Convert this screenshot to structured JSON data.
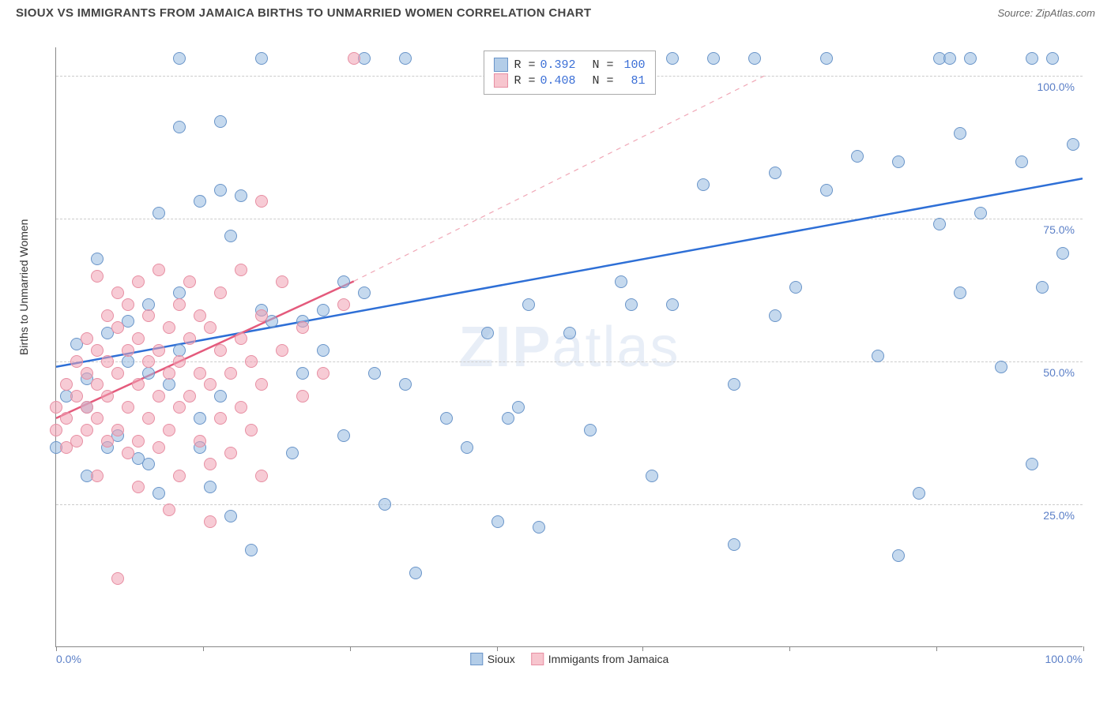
{
  "header": {
    "title": "SIOUX VS IMMIGRANTS FROM JAMAICA BIRTHS TO UNMARRIED WOMEN CORRELATION CHART",
    "source": "Source: ZipAtlas.com"
  },
  "chart": {
    "type": "scatter",
    "y_axis_label": "Births to Unmarried Women",
    "watermark": "ZIPatlas",
    "background_color": "#ffffff",
    "grid_color": "#cccccc",
    "border_color": "#888888",
    "xlim": [
      0,
      100
    ],
    "ylim": [
      0,
      105
    ],
    "x_ticks": [
      0,
      14.3,
      28.6,
      42.9,
      57.1,
      71.4,
      85.7,
      100
    ],
    "x_labels": {
      "0": "0.0%",
      "100": "100.0%"
    },
    "y_gridlines": [
      25,
      50,
      75,
      100
    ],
    "y_labels": {
      "25": "25.0%",
      "50": "50.0%",
      "75": "75.0%",
      "100": "100.0%"
    },
    "legend_top": {
      "rows": [
        {
          "swatch_fill": "#b3cde8",
          "swatch_border": "#6a95c9",
          "r": "0.392",
          "n": "100"
        },
        {
          "swatch_fill": "#f7c5ce",
          "swatch_border": "#e78fa3",
          "r": "0.408",
          "n": "81"
        }
      ],
      "label_r": "R =",
      "label_n": "N ="
    },
    "legend_bottom": [
      {
        "swatch_fill": "#b3cde8",
        "swatch_border": "#6a95c9",
        "label": "Sioux"
      },
      {
        "swatch_fill": "#f7c5ce",
        "swatch_border": "#e78fa3",
        "label": "Immigants from Jamaica"
      }
    ],
    "series": [
      {
        "name": "sioux",
        "fill": "rgba(150,186,224,0.55)",
        "stroke": "#6a95c9",
        "trend_solid": {
          "x1": 0,
          "y1": 49,
          "x2": 100,
          "y2": 82,
          "color": "#2e6fd6",
          "width": 2.5
        },
        "points": [
          [
            0,
            35
          ],
          [
            1,
            44
          ],
          [
            3,
            42
          ],
          [
            2,
            53
          ],
          [
            5,
            55
          ],
          [
            6,
            37
          ],
          [
            8,
            33
          ],
          [
            3,
            47
          ],
          [
            7,
            50
          ],
          [
            9,
            48
          ],
          [
            4,
            68
          ],
          [
            12,
            103
          ],
          [
            20,
            103
          ],
          [
            30,
            103
          ],
          [
            34,
            103
          ],
          [
            44,
            103
          ],
          [
            52,
            103
          ],
          [
            57,
            103
          ],
          [
            60,
            103
          ],
          [
            64,
            103
          ],
          [
            68,
            103
          ],
          [
            75,
            103
          ],
          [
            86,
            103
          ],
          [
            87,
            103
          ],
          [
            89,
            103
          ],
          [
            95,
            103
          ],
          [
            97,
            103
          ],
          [
            12,
            91
          ],
          [
            16,
            92
          ],
          [
            10,
            76
          ],
          [
            14,
            78
          ],
          [
            16,
            80
          ],
          [
            28,
            64
          ],
          [
            30,
            62
          ],
          [
            9,
            60
          ],
          [
            15,
            28
          ],
          [
            17,
            23
          ],
          [
            19,
            17
          ],
          [
            24,
            48
          ],
          [
            26,
            52
          ],
          [
            31,
            48
          ],
          [
            35,
            13
          ],
          [
            40,
            35
          ],
          [
            43,
            22
          ],
          [
            47,
            21
          ],
          [
            45,
            103
          ],
          [
            23,
            34
          ],
          [
            14,
            35
          ],
          [
            10,
            27
          ],
          [
            11,
            46
          ],
          [
            7,
            57
          ],
          [
            21,
            57
          ],
          [
            45,
            42
          ],
          [
            44,
            40
          ],
          [
            50,
            55
          ],
          [
            55,
            64
          ],
          [
            58,
            30
          ],
          [
            60,
            60
          ],
          [
            63,
            81
          ],
          [
            66,
            46
          ],
          [
            70,
            58
          ],
          [
            72,
            63
          ],
          [
            75,
            80
          ],
          [
            78,
            86
          ],
          [
            80,
            51
          ],
          [
            82,
            85
          ],
          [
            84,
            27
          ],
          [
            86,
            74
          ],
          [
            88,
            62
          ],
          [
            90,
            76
          ],
          [
            92,
            49
          ],
          [
            94,
            85
          ],
          [
            95,
            32
          ],
          [
            96,
            63
          ],
          [
            98,
            69
          ],
          [
            99,
            88
          ],
          [
            88,
            90
          ],
          [
            82,
            16
          ],
          [
            70,
            83
          ],
          [
            66,
            18
          ],
          [
            52,
            38
          ],
          [
            56,
            60
          ],
          [
            24,
            57
          ],
          [
            26,
            59
          ],
          [
            20,
            59
          ],
          [
            18,
            79
          ],
          [
            14,
            40
          ],
          [
            12,
            62
          ],
          [
            16,
            44
          ],
          [
            34,
            46
          ],
          [
            38,
            40
          ],
          [
            42,
            55
          ],
          [
            46,
            60
          ],
          [
            9,
            32
          ],
          [
            5,
            35
          ],
          [
            3,
            30
          ],
          [
            17,
            72
          ],
          [
            12,
            52
          ],
          [
            28,
            37
          ],
          [
            32,
            25
          ]
        ]
      },
      {
        "name": "jamaica",
        "fill": "rgba(241,160,179,0.55)",
        "stroke": "#e78fa3",
        "trend_solid": {
          "x1": 0,
          "y1": 40,
          "x2": 29,
          "y2": 64,
          "color": "#e45a7c",
          "width": 2.5
        },
        "trend_dashed": {
          "x1": 29,
          "y1": 64,
          "x2": 69,
          "y2": 100,
          "color": "#f0a7b6",
          "width": 1.2
        },
        "points": [
          [
            0,
            38
          ],
          [
            0,
            42
          ],
          [
            1,
            35
          ],
          [
            1,
            40
          ],
          [
            1,
            46
          ],
          [
            2,
            36
          ],
          [
            2,
            44
          ],
          [
            2,
            50
          ],
          [
            3,
            38
          ],
          [
            3,
            42
          ],
          [
            3,
            48
          ],
          [
            3,
            54
          ],
          [
            4,
            40
          ],
          [
            4,
            46
          ],
          [
            4,
            52
          ],
          [
            4,
            65
          ],
          [
            5,
            36
          ],
          [
            5,
            44
          ],
          [
            5,
            50
          ],
          [
            5,
            58
          ],
          [
            6,
            38
          ],
          [
            6,
            48
          ],
          [
            6,
            56
          ],
          [
            6,
            62
          ],
          [
            7,
            34
          ],
          [
            7,
            42
          ],
          [
            7,
            52
          ],
          [
            7,
            60
          ],
          [
            8,
            36
          ],
          [
            8,
            46
          ],
          [
            8,
            54
          ],
          [
            8,
            64
          ],
          [
            9,
            40
          ],
          [
            9,
            50
          ],
          [
            9,
            58
          ],
          [
            10,
            35
          ],
          [
            10,
            44
          ],
          [
            10,
            52
          ],
          [
            10,
            66
          ],
          [
            11,
            38
          ],
          [
            11,
            48
          ],
          [
            11,
            56
          ],
          [
            12,
            30
          ],
          [
            12,
            42
          ],
          [
            12,
            50
          ],
          [
            12,
            60
          ],
          [
            13,
            44
          ],
          [
            13,
            54
          ],
          [
            13,
            64
          ],
          [
            14,
            36
          ],
          [
            14,
            48
          ],
          [
            14,
            58
          ],
          [
            15,
            32
          ],
          [
            15,
            46
          ],
          [
            15,
            56
          ],
          [
            16,
            40
          ],
          [
            16,
            52
          ],
          [
            16,
            62
          ],
          [
            17,
            34
          ],
          [
            17,
            48
          ],
          [
            18,
            42
          ],
          [
            18,
            54
          ],
          [
            18,
            66
          ],
          [
            19,
            38
          ],
          [
            19,
            50
          ],
          [
            20,
            30
          ],
          [
            20,
            46
          ],
          [
            20,
            58
          ],
          [
            22,
            52
          ],
          [
            22,
            64
          ],
          [
            24,
            44
          ],
          [
            24,
            56
          ],
          [
            26,
            48
          ],
          [
            28,
            60
          ],
          [
            15,
            22
          ],
          [
            11,
            24
          ],
          [
            8,
            28
          ],
          [
            6,
            12
          ],
          [
            4,
            30
          ],
          [
            20,
            78
          ],
          [
            29,
            103
          ]
        ]
      }
    ]
  }
}
